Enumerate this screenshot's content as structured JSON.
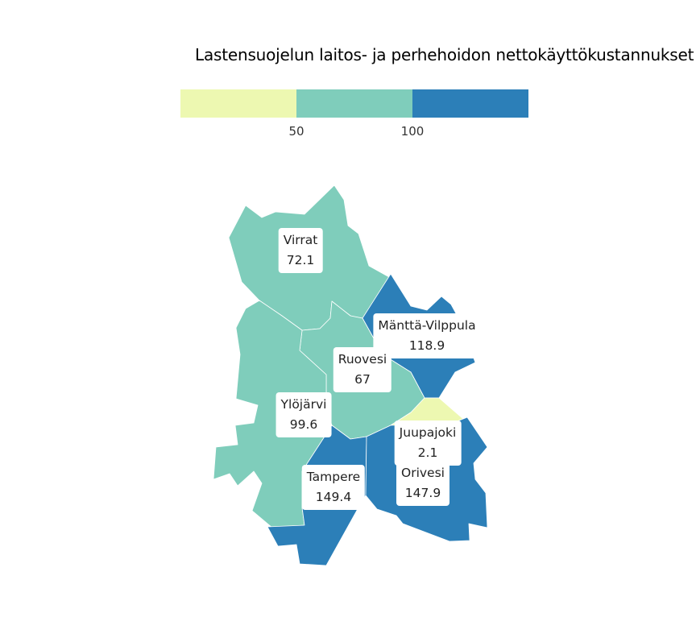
{
  "title": "Lastensuojelun laitos- ja perhehoidon nettokäyttökustannukset",
  "legend": {
    "ticks": [
      "50",
      "100"
    ],
    "colors": [
      "#edf8b1",
      "#7fcdbb",
      "#2c7fb8"
    ]
  },
  "regions": [
    {
      "name": "Virrat",
      "value": "72.1",
      "color": "#7fcdbb"
    },
    {
      "name": "Mänttä-Vilppula",
      "value": "118.9",
      "color": "#2c7fb8"
    },
    {
      "name": "Ruovesi",
      "value": "67",
      "color": "#7fcdbb"
    },
    {
      "name": "Ylöjärvi",
      "value": "99.6",
      "color": "#7fcdbb"
    },
    {
      "name": "Juupajoki",
      "value": "2.1",
      "color": "#edf8b1"
    },
    {
      "name": "Tampere",
      "value": "149.4",
      "color": "#2c7fb8"
    },
    {
      "name": "Orivesi",
      "value": "147.9",
      "color": "#2c7fb8"
    }
  ]
}
